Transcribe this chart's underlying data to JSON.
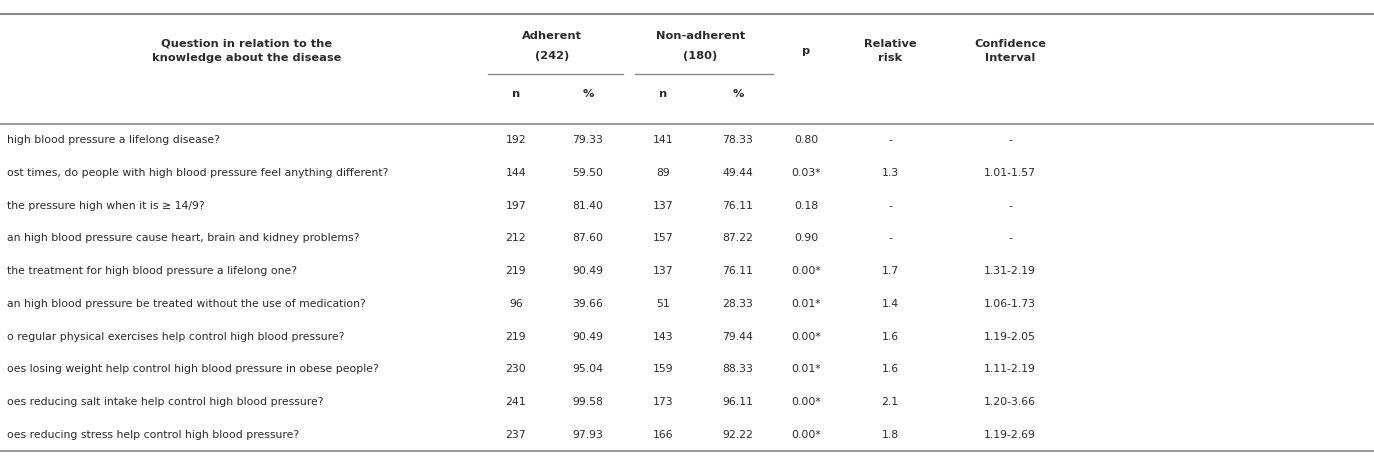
{
  "questions": [
    "high blood pressure a lifelong disease?",
    "ost times, do people with high blood pressure feel anything different?",
    "the pressure high when it is ≥ 14/9?",
    "an high blood pressure cause heart, brain and kidney problems?",
    "the treatment for high blood pressure a lifelong one?",
    "an high blood pressure be treated without the use of medication?",
    "o regular physical exercises help control high blood pressure?",
    "oes losing weight help control high blood pressure in obese people?",
    "oes reducing salt intake help control high blood pressure?",
    "oes reducing stress help control high blood pressure?"
  ],
  "adh_n": [
    "192",
    "144",
    "197",
    "212",
    "219",
    "96",
    "219",
    "230",
    "241",
    "237"
  ],
  "adh_pct": [
    "79.33",
    "59.50",
    "81.40",
    "87.60",
    "90.49",
    "39.66",
    "90.49",
    "95.04",
    "99.58",
    "97.93"
  ],
  "nonadh_n": [
    "141",
    "89",
    "137",
    "157",
    "137",
    "51",
    "143",
    "159",
    "173",
    "166"
  ],
  "nonadh_pct": [
    "78.33",
    "49.44",
    "76.11",
    "87.22",
    "76.11",
    "28.33",
    "79.44",
    "88.33",
    "96.11",
    "92.22"
  ],
  "p_val": [
    "0.80",
    "0.03*",
    "0.18",
    "0.90",
    "0.00*",
    "0.01*",
    "0.00*",
    "0.01*",
    "0.00*",
    "0.00*"
  ],
  "rel_risk": [
    "-",
    "1.3",
    "-",
    "-",
    "1.7",
    "1.4",
    "1.6",
    "1.6",
    "2.1",
    "1.8"
  ],
  "conf_int": [
    "-",
    "1.01-1.57",
    "-",
    "-",
    "1.31-2.19",
    "1.06-1.73",
    "1.19-2.05",
    "1.11-2.19",
    "1.20-3.66",
    "1.19-2.69"
  ],
  "bg_color": "#ffffff",
  "text_color": "#2b2b2b",
  "line_color": "#888888",
  "fontsize": 7.8,
  "header_fontsize": 8.2
}
